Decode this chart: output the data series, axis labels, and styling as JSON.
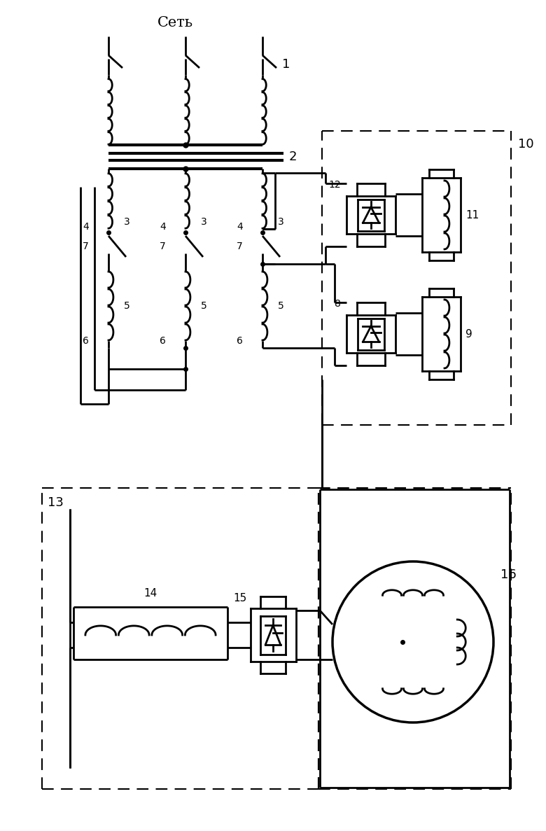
{
  "background": "#ffffff",
  "line_color": "#000000",
  "lw": 2.0,
  "lw_thick": 3.0,
  "fig_w": 7.8,
  "fig_h": 11.87,
  "dpi": 100
}
